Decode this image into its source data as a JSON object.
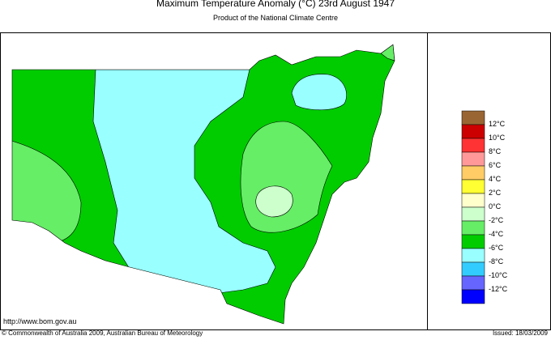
{
  "header": {
    "title": "Maximum Temperature Anomaly (°C)  23rd August 1947",
    "subtitle": "Product of the National Climate Centre"
  },
  "legend": {
    "colors": [
      "#996633",
      "#cc0000",
      "#ff3333",
      "#ff9999",
      "#ffcc66",
      "#ffff33",
      "#ffffcc",
      "#ccffcc",
      "#66ee66",
      "#00cc00",
      "#99ffff",
      "#33ccff",
      "#6666ff",
      "#0000ff"
    ],
    "labels": [
      "12°C",
      "10°C",
      "8°C",
      "6°C",
      "4°C",
      "2°C",
      "0°C",
      "-2°C",
      "-4°C",
      "-6°C",
      "-8°C",
      "-10°C",
      "-12°C"
    ]
  },
  "footer": {
    "url": "http://www.bom.gov.au",
    "copyright": "© Commonwealth of Australia 2009, Australian Bureau of Meteorology",
    "issued": "Issued: 18/03/2009"
  }
}
